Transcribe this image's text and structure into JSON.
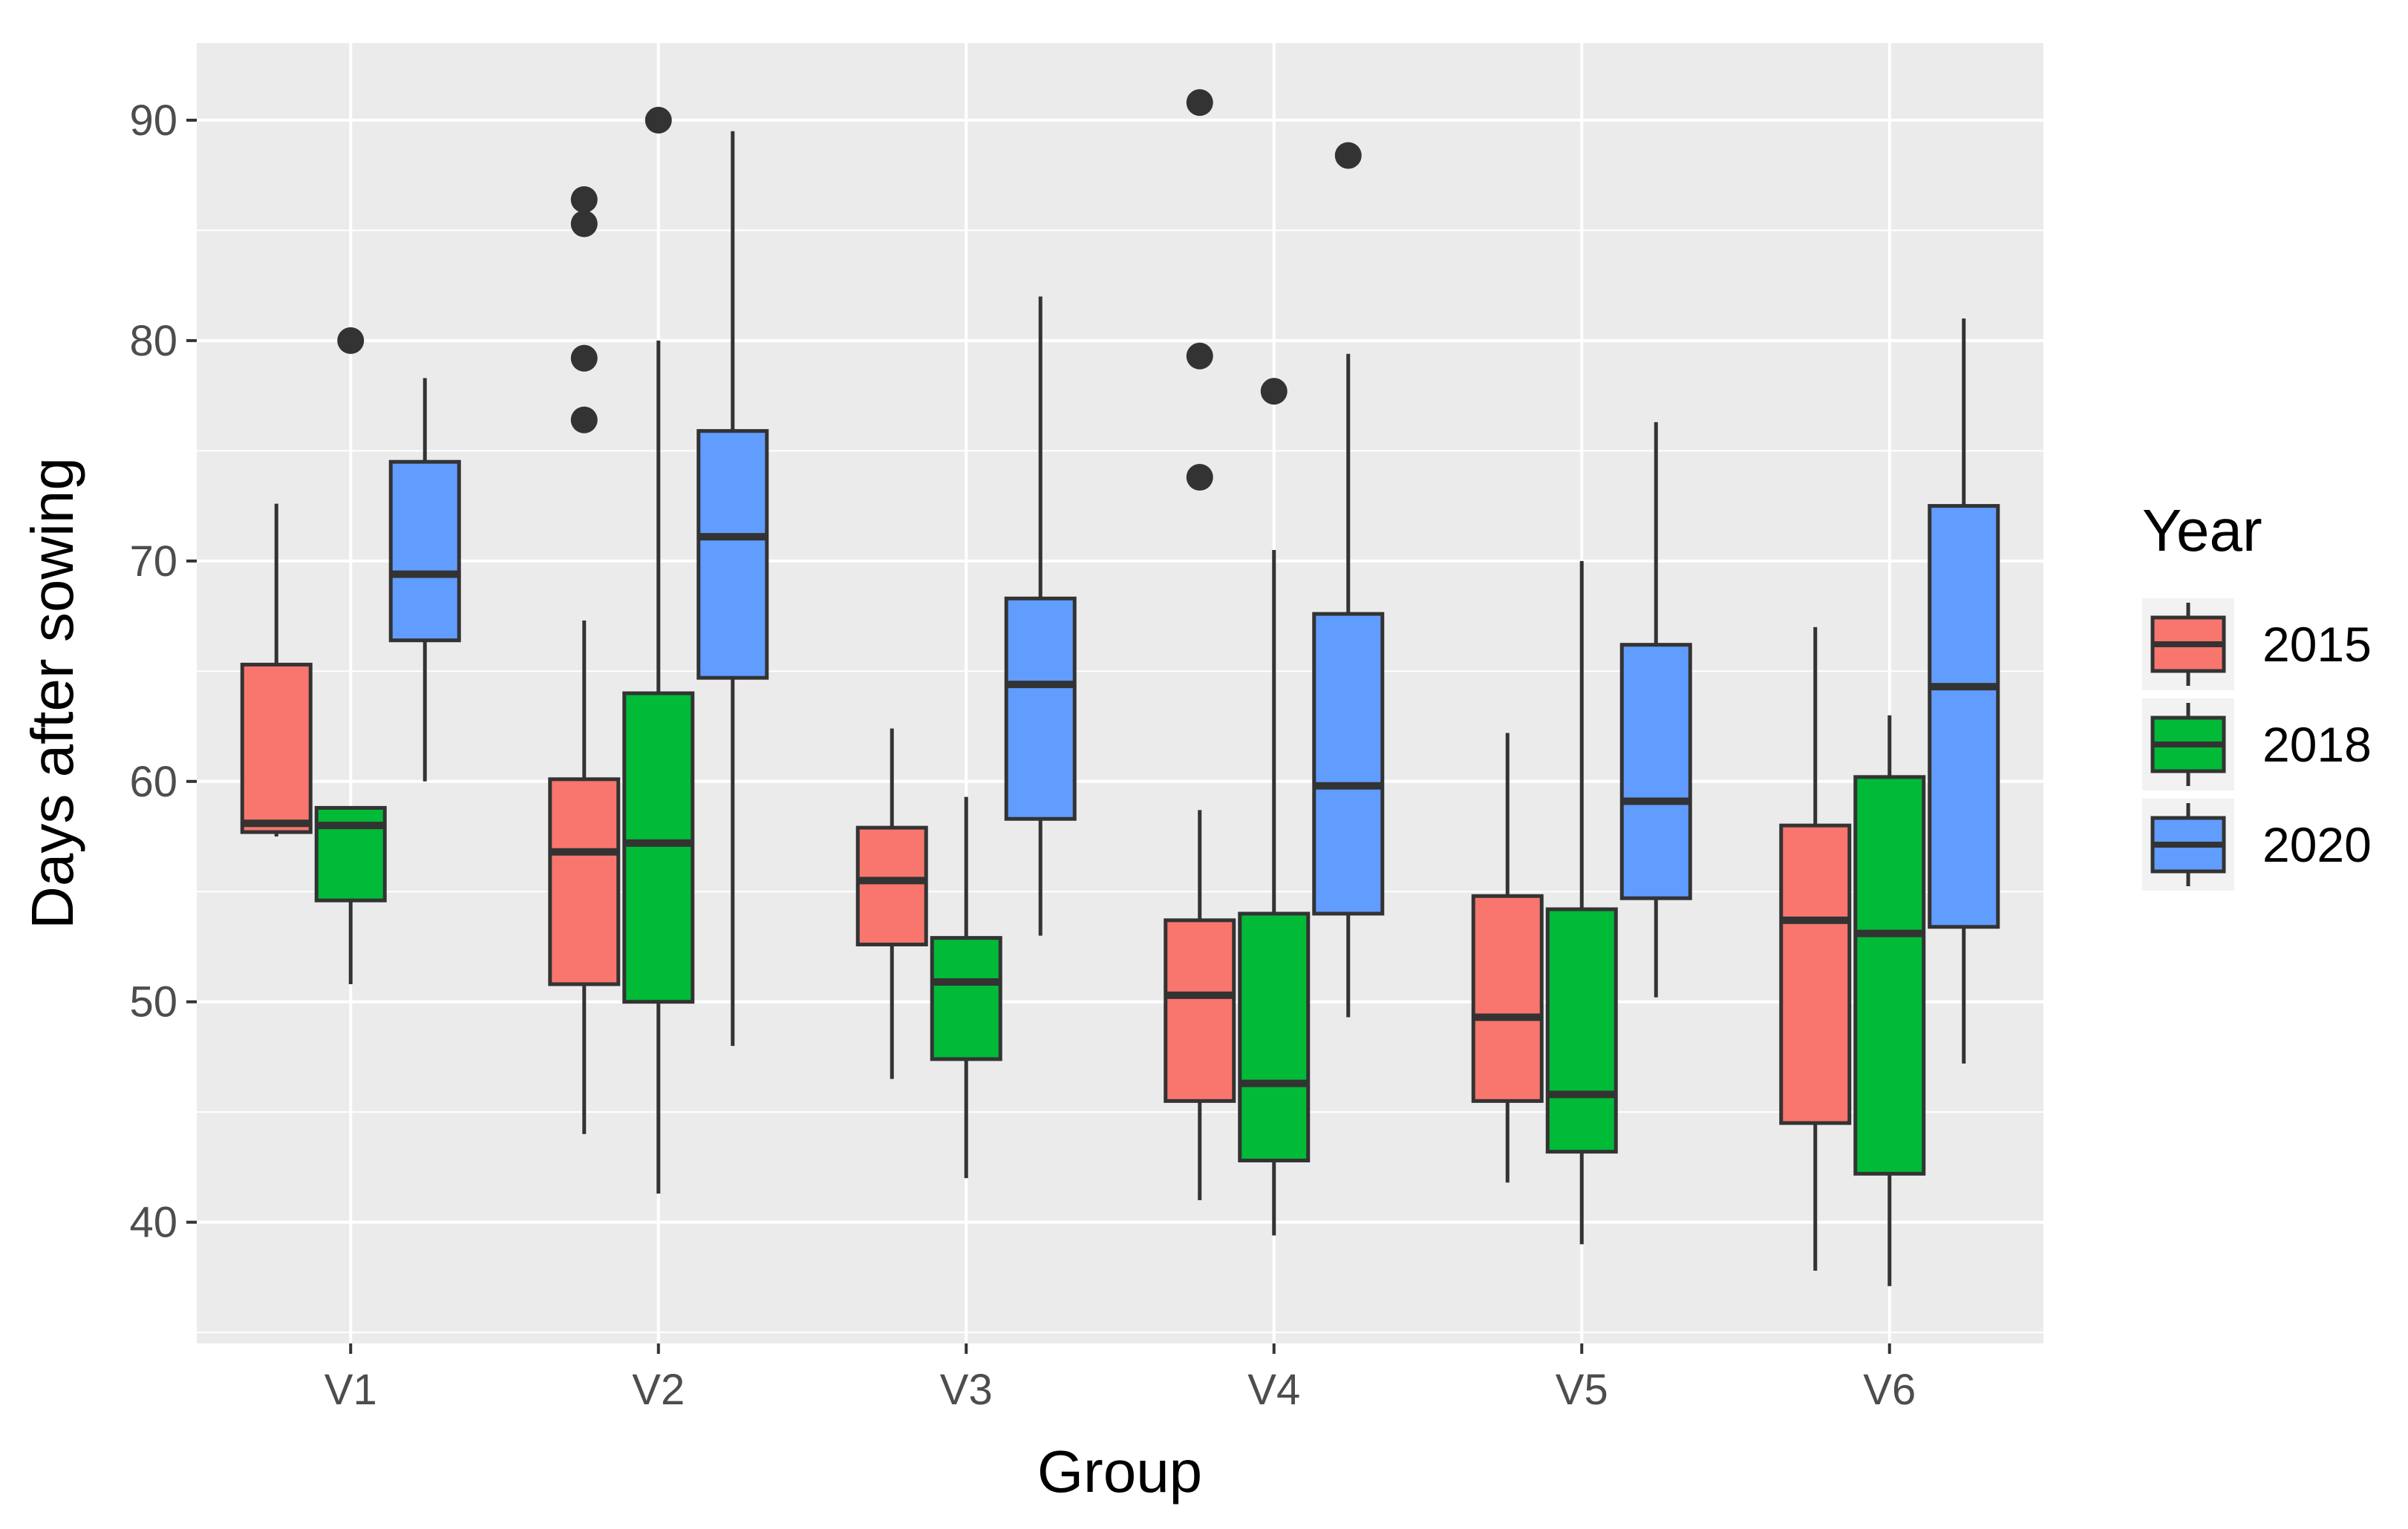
{
  "chart_data": {
    "type": "boxplot",
    "title": "",
    "xlabel": "Group",
    "ylabel": "Days after sowing",
    "ylim": [
      34.5,
      93.5
    ],
    "yticks": [
      40,
      50,
      60,
      70,
      80,
      90
    ],
    "grid": true,
    "categories": [
      "V1",
      "V2",
      "V3",
      "V4",
      "V5",
      "V6"
    ],
    "legend": {
      "title": "Year",
      "position": "right"
    },
    "series": [
      {
        "name": "2015",
        "color": "#F8766D",
        "boxes": [
          {
            "whisker_low": 57.5,
            "q1": 57.7,
            "median": 58.1,
            "q3": 65.3,
            "whisker_high": 72.6,
            "outliers": []
          },
          {
            "whisker_low": 44.0,
            "q1": 50.8,
            "median": 56.8,
            "q3": 60.1,
            "whisker_high": 67.3,
            "outliers": [
              76.4,
              79.2,
              85.3,
              86.4
            ]
          },
          {
            "whisker_low": 46.5,
            "q1": 52.6,
            "median": 55.5,
            "q3": 57.9,
            "whisker_high": 62.4,
            "outliers": []
          },
          {
            "whisker_low": 41.0,
            "q1": 45.5,
            "median": 50.3,
            "q3": 53.7,
            "whisker_high": 58.7,
            "outliers": [
              73.8,
              79.3,
              90.8
            ]
          },
          {
            "whisker_low": 41.8,
            "q1": 45.5,
            "median": 49.3,
            "q3": 54.8,
            "whisker_high": 62.2,
            "outliers": []
          },
          {
            "whisker_low": 37.8,
            "q1": 44.5,
            "median": 53.7,
            "q3": 58.0,
            "whisker_high": 67.0,
            "outliers": []
          }
        ]
      },
      {
        "name": "2018",
        "color": "#00BA38",
        "boxes": [
          {
            "whisker_low": 50.8,
            "q1": 54.6,
            "median": 58.0,
            "q3": 58.8,
            "whisker_high": 58.8,
            "outliers": [
              80.0
            ]
          },
          {
            "whisker_low": 41.3,
            "q1": 50.0,
            "median": 57.2,
            "q3": 64.0,
            "whisker_high": 80.0,
            "outliers": [
              90.0
            ]
          },
          {
            "whisker_low": 42.0,
            "q1": 47.4,
            "median": 50.9,
            "q3": 52.9,
            "whisker_high": 59.3,
            "outliers": []
          },
          {
            "whisker_low": 39.4,
            "q1": 42.8,
            "median": 46.3,
            "q3": 54.0,
            "whisker_high": 70.5,
            "outliers": [
              77.7
            ]
          },
          {
            "whisker_low": 39.0,
            "q1": 43.2,
            "median": 45.8,
            "q3": 54.2,
            "whisker_high": 70.0,
            "outliers": []
          },
          {
            "whisker_low": 37.1,
            "q1": 42.2,
            "median": 53.1,
            "q3": 60.2,
            "whisker_high": 63.0,
            "outliers": []
          }
        ]
      },
      {
        "name": "2020",
        "color": "#619CFF",
        "boxes": [
          {
            "whisker_low": 60.0,
            "q1": 66.4,
            "median": 69.4,
            "q3": 74.5,
            "whisker_high": 78.3,
            "outliers": []
          },
          {
            "whisker_low": 48.0,
            "q1": 64.7,
            "median": 71.1,
            "q3": 75.9,
            "whisker_high": 89.5,
            "outliers": []
          },
          {
            "whisker_low": 53.0,
            "q1": 58.3,
            "median": 64.4,
            "q3": 68.3,
            "whisker_high": 82.0,
            "outliers": []
          },
          {
            "whisker_low": 49.3,
            "q1": 54.0,
            "median": 59.8,
            "q3": 67.6,
            "whisker_high": 79.4,
            "outliers": [
              88.4
            ]
          },
          {
            "whisker_low": 50.2,
            "q1": 54.7,
            "median": 59.1,
            "q3": 66.2,
            "whisker_high": 76.3,
            "outliers": []
          },
          {
            "whisker_low": 47.2,
            "q1": 53.4,
            "median": 64.3,
            "q3": 72.5,
            "whisker_high": 81.0,
            "outliers": []
          }
        ]
      }
    ]
  }
}
